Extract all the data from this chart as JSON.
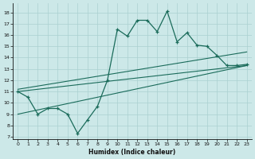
{
  "x_data": [
    0,
    1,
    2,
    3,
    4,
    5,
    6,
    7,
    8,
    9,
    10,
    11,
    12,
    13,
    14,
    15,
    16,
    17,
    18,
    19,
    20,
    21,
    22,
    23
  ],
  "y_main": [
    11,
    10.5,
    9,
    9.5,
    9.5,
    9,
    7.3,
    8.5,
    9.7,
    12,
    16.5,
    15.9,
    17.3,
    17.3,
    16.3,
    18.1,
    15.4,
    16.2,
    15.1,
    15.0,
    14.2,
    13.3,
    13.3,
    13.4
  ],
  "line_color": "#1a6b5a",
  "bg_color": "#cce8e8",
  "grid_color": "#aad0d0",
  "xlabel": "Humidex (Indice chaleur)",
  "xlim": [
    -0.5,
    23.5
  ],
  "ylim": [
    6.8,
    18.8
  ],
  "yticks": [
    7,
    8,
    9,
    10,
    11,
    12,
    13,
    14,
    15,
    16,
    17,
    18
  ],
  "xticks": [
    0,
    1,
    2,
    3,
    4,
    5,
    6,
    7,
    8,
    9,
    10,
    11,
    12,
    13,
    14,
    15,
    16,
    17,
    18,
    19,
    20,
    21,
    22,
    23
  ],
  "trend1_x": [
    0,
    23
  ],
  "trend1_y": [
    9.0,
    13.3
  ],
  "trend2_x": [
    0,
    23
  ],
  "trend2_y": [
    11.0,
    13.3
  ],
  "trend3_x": [
    0,
    23
  ],
  "trend3_y": [
    11.2,
    14.5
  ]
}
